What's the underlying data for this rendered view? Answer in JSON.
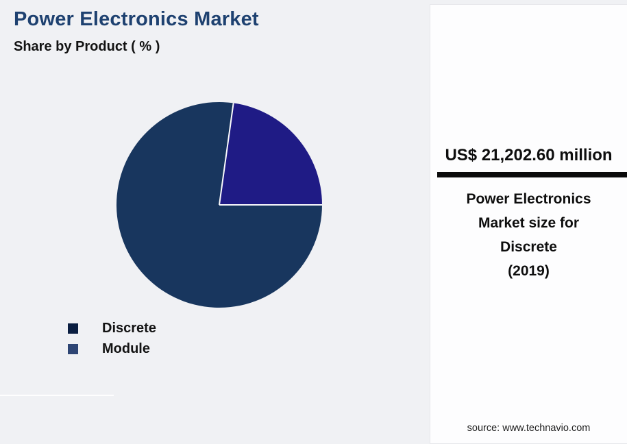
{
  "header": {
    "title": "Power Electronics Market",
    "subtitle": "Share by Product ( % )"
  },
  "chart_data": {
    "type": "pie",
    "title": "Power Electronics Market — Share by Product (%)",
    "start_angle_deg": 90,
    "direction": "clockwise",
    "data_labels": false,
    "legend_position": "bottom-left",
    "slices": [
      {
        "label": "Discrete",
        "value": 77.2,
        "color": "#18365E",
        "legend_color": "#0A1E41"
      },
      {
        "label": "Module",
        "value": 22.8,
        "color": "#1F1B85",
        "legend_color": "#2E4574"
      }
    ]
  },
  "side_panel": {
    "value": "US$ 21,202.60 million",
    "description_lines": [
      "Power Electronics",
      "Market size for",
      "Discrete",
      "(2019)"
    ],
    "source": "source: www.technavio.com"
  },
  "colors": {
    "background": "#F0F1F4",
    "panel_background": "#FDFDFE",
    "title": "#1E4170",
    "underline_bar": "#0B0B0B",
    "slice_divider": "#FAFAFC"
  }
}
